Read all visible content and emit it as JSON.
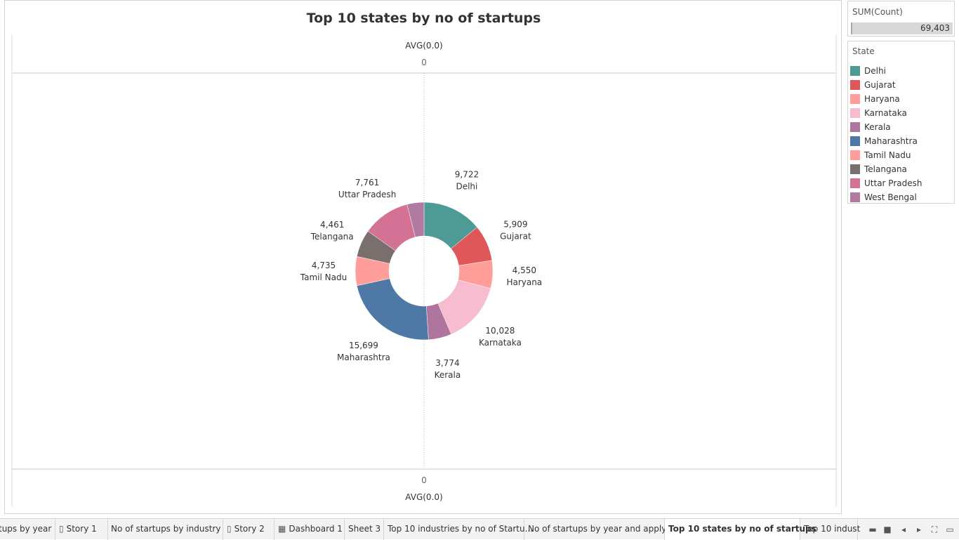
{
  "chart_data": {
    "type": "pie",
    "donut": true,
    "title": "Top 10 states by no of startups",
    "axis_top_label": "AVG(0.0)",
    "axis_top_tick": "0",
    "axis_bottom_label": "AVG(0.0)",
    "axis_bottom_tick": "0",
    "slices": [
      {
        "label": "Delhi",
        "value": 9722,
        "value_label": "9,722",
        "color": "#4e9a94"
      },
      {
        "label": "Gujarat",
        "value": 5909,
        "value_label": "5,909",
        "color": "#e05759"
      },
      {
        "label": "Haryana",
        "value": 4550,
        "value_label": "4,550",
        "color": "#ff9d99"
      },
      {
        "label": "Karnataka",
        "value": 10028,
        "value_label": "10,028",
        "color": "#f8bcd0"
      },
      {
        "label": "Kerala",
        "value": 3774,
        "value_label": "3,774",
        "color": "#b0759e"
      },
      {
        "label": "Maharashtra",
        "value": 15699,
        "value_label": "15,699",
        "color": "#4e79a7"
      },
      {
        "label": "Tamil Nadu",
        "value": 4735,
        "value_label": "4,735",
        "color": "#ff9d9a"
      },
      {
        "label": "Telangana",
        "value": 4461,
        "value_label": "4,461",
        "color": "#79706e"
      },
      {
        "label": "Uttar Pradesh",
        "value": 7761,
        "value_label": "7,761",
        "color": "#d37295"
      },
      {
        "label": "West Bengal",
        "value": 2764,
        "value_label": "",
        "color": "#b07aa1"
      }
    ]
  },
  "summary": {
    "title": "SUM(Count)",
    "value": "69,403"
  },
  "legend": {
    "title": "State",
    "items": [
      {
        "label": "Delhi",
        "color": "#4e9a94"
      },
      {
        "label": "Gujarat",
        "color": "#e05759"
      },
      {
        "label": "Haryana",
        "color": "#ff9d99"
      },
      {
        "label": "Karnataka",
        "color": "#f8bcd0"
      },
      {
        "label": "Kerala",
        "color": "#b0759e"
      },
      {
        "label": "Maharashtra",
        "color": "#4e79a7"
      },
      {
        "label": "Tamil Nadu",
        "color": "#ff9d9a"
      },
      {
        "label": "Telangana",
        "color": "#79706e"
      },
      {
        "label": "Uttar Pradesh",
        "color": "#d37295"
      },
      {
        "label": "West Bengal",
        "color": "#b07aa1"
      }
    ]
  },
  "tabs": [
    {
      "label": "tups by year",
      "icon": "",
      "active": false
    },
    {
      "label": "Story 1",
      "icon": "story-icon",
      "active": false
    },
    {
      "label": "No of startups by industry",
      "icon": "",
      "active": false
    },
    {
      "label": "Story 2",
      "icon": "story-icon",
      "active": false
    },
    {
      "label": "Dashboard 1",
      "icon": "dashboard-icon",
      "active": false
    },
    {
      "label": "Sheet 3",
      "icon": "",
      "active": false
    },
    {
      "label": "Top 10 industries by no of Startu...",
      "icon": "",
      "active": false
    },
    {
      "label": "No of startups by year and apply...",
      "icon": "",
      "active": false
    },
    {
      "label": "Top 10 states by no of startups",
      "icon": "",
      "active": true
    },
    {
      "label": "Top 10 indust",
      "icon": "",
      "active": false
    }
  ],
  "controls": [
    "filmstrip-icon",
    "tile-icon",
    "prev-icon",
    "next-icon",
    "fullscreen-icon",
    "present-icon"
  ]
}
